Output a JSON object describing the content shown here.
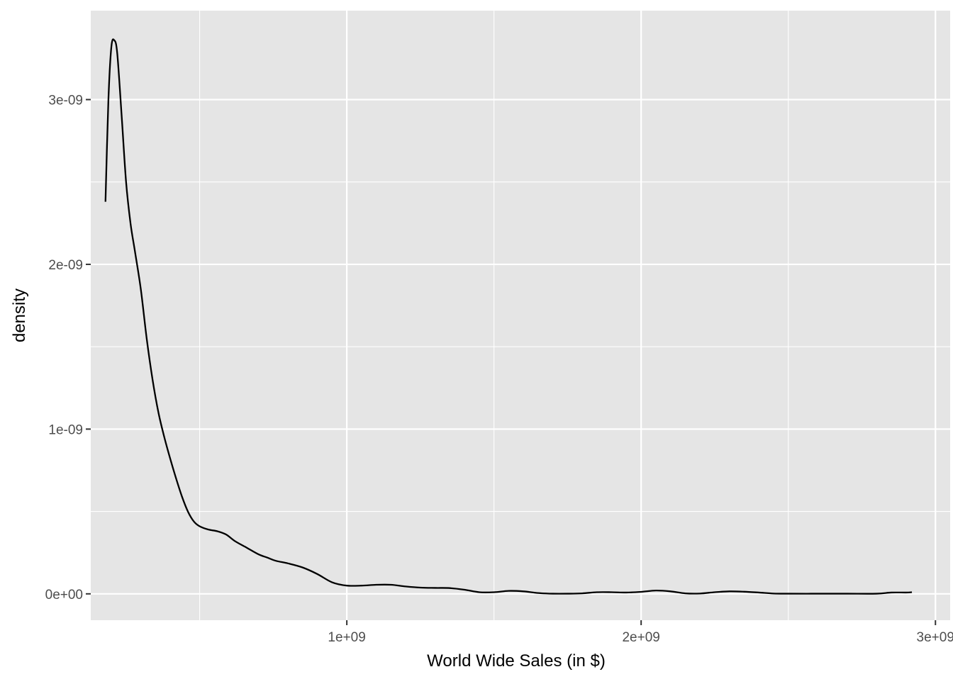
{
  "chart_data": {
    "type": "line",
    "xlabel": "World Wide Sales (in $)",
    "ylabel": "density",
    "xlim": [
      130000000,
      3050000000
    ],
    "ylim": [
      -1.6e-10,
      3.54e-09
    ],
    "x_ticks": [
      {
        "value": 1000000000,
        "label": "1e+09"
      },
      {
        "value": 2000000000,
        "label": "2e+09"
      },
      {
        "value": 3000000000,
        "label": "3e+09"
      }
    ],
    "x_minor_ticks": [
      500000000,
      1500000000,
      2500000000
    ],
    "y_ticks": [
      {
        "value": 0,
        "label": "0e+00"
      },
      {
        "value": 1e-09,
        "label": "1e-09"
      },
      {
        "value": 2e-09,
        "label": "2e-09"
      },
      {
        "value": 3e-09,
        "label": "3e-09"
      }
    ],
    "y_minor_ticks": [
      5e-10,
      1.5e-09,
      2.5e-09
    ],
    "grid": true,
    "legend": "none",
    "colors": {
      "panel": "#e5e5e5",
      "grid": "#ffffff",
      "line": "#000000",
      "tick_text": "#4d4d4d"
    },
    "series": [
      {
        "x": [
          180000000.0,
          190000000.0,
          200000000.0,
          210000000.0,
          220000000.0,
          235000000.0,
          250000000.0,
          265000000.0,
          280000000.0,
          300000000.0,
          320000000.0,
          340000000.0,
          360000000.0,
          380000000.0,
          400000000.0,
          420000000.0,
          440000000.0,
          460000000.0,
          480000000.0,
          500000000.0,
          530000000.0,
          560000000.0,
          590000000.0,
          620000000.0,
          660000000.0,
          700000000.0,
          730000000.0,
          760000000.0,
          800000000.0,
          850000000.0,
          900000000.0,
          950000000.0,
          1000000000.0,
          1050000000.0,
          1100000000.0,
          1150000000.0,
          1200000000.0,
          1250000000.0,
          1300000000.0,
          1350000000.0,
          1400000000.0,
          1450000000.0,
          1500000000.0,
          1550000000.0,
          1600000000.0,
          1650000000.0,
          1700000000.0,
          1750000000.0,
          1800000000.0,
          1850000000.0,
          1900000000.0,
          1950000000.0,
          2000000000.0,
          2050000000.0,
          2100000000.0,
          2150000000.0,
          2200000000.0,
          2250000000.0,
          2300000000.0,
          2350000000.0,
          2400000000.0,
          2450000000.0,
          2500000000.0,
          2600000000.0,
          2700000000.0,
          2800000000.0,
          2850000000.0,
          2900000000.0,
          2920000000.0
        ],
        "y": [
          2.38e-09,
          3e-09,
          3.32e-09,
          3.36e-09,
          3.28e-09,
          2.9e-09,
          2.5e-09,
          2.25e-09,
          2.08e-09,
          1.85e-09,
          1.55e-09,
          1.3e-09,
          1.1e-09,
          9.5e-10,
          8.2e-10,
          7e-10,
          5.9e-10,
          5e-10,
          4.4e-10,
          4.1e-10,
          3.9e-10,
          3.8e-10,
          3.6e-10,
          3.2e-10,
          2.8e-10,
          2.4e-10,
          2.2e-10,
          2e-10,
          1.85e-10,
          1.6e-10,
          1.2e-10,
          7e-11,
          5e-11,
          5e-11,
          5.5e-11,
          5.5e-11,
          4.5e-11,
          3.8e-11,
          3.6e-11,
          3.5e-11,
          2.5e-11,
          1e-11,
          1e-11,
          1.8e-11,
          1.5e-11,
          5e-12,
          1e-12,
          1e-12,
          3e-12,
          1e-11,
          1e-11,
          8e-12,
          1.2e-11,
          2e-11,
          1.5e-11,
          3e-12,
          2e-12,
          1e-11,
          1.5e-11,
          1.3e-11,
          8e-12,
          2e-12,
          1e-12,
          1e-12,
          1e-12,
          1e-12,
          8e-12,
          8e-12,
          1e-11
        ]
      }
    ]
  }
}
